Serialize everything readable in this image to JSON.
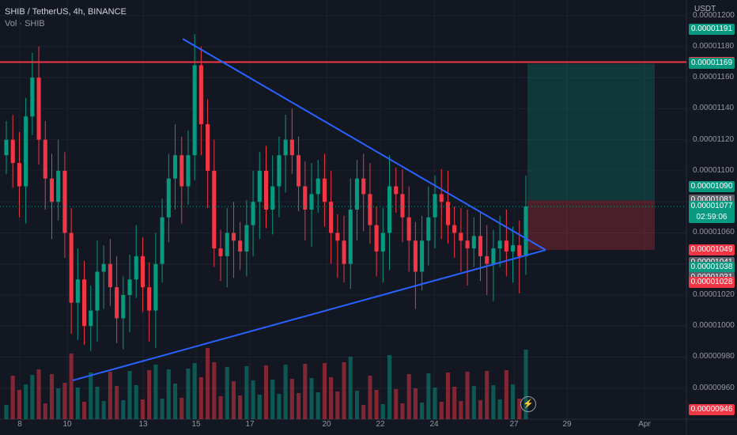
{
  "legend": {
    "title": "SHIB / TetherUS, 4h, BINANCE",
    "volume": "Vol · SHIB"
  },
  "price_axis": {
    "unit": "USDT",
    "ticks": [
      {
        "label": "0.00001200",
        "v": 1.2e-05
      },
      {
        "label": "0.00001180",
        "v": 1.18e-05
      },
      {
        "label": "0.00001160",
        "v": 1.16e-05
      },
      {
        "label": "0.00001140",
        "v": 1.14e-05
      },
      {
        "label": "0.00001120",
        "v": 1.12e-05
      },
      {
        "label": "0.00001100",
        "v": 1.1e-05
      },
      {
        "label": "0.00001080",
        "v": 1.08e-05
      },
      {
        "label": "0.00001060",
        "v": 1.06e-05
      },
      {
        "label": "0.00001040",
        "v": 1.04e-05
      },
      {
        "label": "0.00001020",
        "v": 1.02e-05
      },
      {
        "label": "0.00001000",
        "v": 1e-05
      },
      {
        "label": "0.00000980",
        "v": 9.8e-06
      },
      {
        "label": "0.00000960",
        "v": 9.6e-06
      }
    ],
    "tags": [
      {
        "label": "0.00001191",
        "v": 1.191e-05,
        "color": "#089981"
      },
      {
        "label": "0.00001170",
        "v": 1.17e-05,
        "color": "#f23645"
      },
      {
        "label": "0.00001169",
        "v": 1.169e-05,
        "color": "#089981"
      },
      {
        "label": "0.00001090",
        "v": 1.09e-05,
        "color": "#089981"
      },
      {
        "label": "0.00001081",
        "v": 1.081e-05,
        "color": "#5d606b"
      },
      {
        "label": "0.00001077",
        "v": 1.077e-05,
        "color": "#089981",
        "sub": "02:59:06"
      },
      {
        "label": "0.00001049",
        "v": 1.049e-05,
        "color": "#f23645"
      },
      {
        "label": "0.00001041",
        "v": 1.041e-05,
        "color": "#5d606b"
      },
      {
        "label": "0.00001038",
        "v": 1.038e-05,
        "color": "#089981"
      },
      {
        "label": "0.00001031",
        "v": 1.031e-05,
        "color": "#5d606b"
      },
      {
        "label": "0.00001028",
        "v": 1.028e-05,
        "color": "#f23645"
      },
      {
        "label": "0.00000946",
        "v": 9.46e-06,
        "color": "#f23645"
      }
    ]
  },
  "time_axis": [
    "8",
    "10",
    "13",
    "15",
    "17",
    "20",
    "22",
    "24",
    "27",
    "29",
    "Apr"
  ],
  "chart_data": {
    "type": "candlestick",
    "symbol": "SHIB / TetherUS",
    "interval": "4h",
    "exchange": "BINANCE",
    "y_range": [
      9.4e-06,
      1.21e-05
    ],
    "resistance_level": 1.17e-05,
    "last_price": 1.077e-05,
    "close_series": [
      1.12e-05,
      1.105e-05,
      1.09e-05,
      1.135e-05,
      1.16e-05,
      1.12e-05,
      1.095e-05,
      1.08e-05,
      1.1e-05,
      1.06e-05,
      1.015e-05,
      1.03e-05,
      1e-05,
      1.01e-05,
      1.035e-05,
      1.04e-05,
      1.025e-05,
      1.005e-05,
      1.02e-05,
      1.03e-05,
      1.045e-05,
      1.025e-05,
      1.01e-05,
      1.04e-05,
      1.07e-05,
      1.095e-05,
      1.11e-05,
      1.09e-05,
      1.11e-05,
      1.168e-05,
      1.13e-05,
      1.1e-05,
      1.05e-05,
      1.045e-05,
      1.06e-05,
      1.055e-05,
      1.048e-05,
      1.065e-05,
      1.08e-05,
      1.1e-05,
      1.075e-05,
      1.09e-05,
      1.11e-05,
      1.12e-05,
      1.11e-05,
      1.09e-05,
      1.075e-05,
      1.085e-05,
      1.095e-05,
      1.08e-05,
      1.06e-05,
      1.055e-05,
      1.04e-05,
      1.075e-05,
      1.095e-05,
      1.085e-05,
      1.065e-05,
      1.048e-05,
      1.06e-05,
      1.09e-05,
      1.085e-05,
      1.07e-05,
      1.055e-05,
      1.035e-05,
      1.055e-05,
      1.07e-05,
      1.085e-05,
      1.08e-05,
      1.065e-05,
      1.06e-05,
      1.055e-05,
      1.05e-05,
      1.058e-05,
      1.045e-05,
      1.04e-05,
      1.05e-05,
      1.055e-05,
      1.048e-05,
      1.052e-05,
      1.045e-05,
      1.077e-05
    ],
    "triangle": {
      "upper_start": 1.185e-05,
      "lower_start": 9.65e-06,
      "apex": 1.049e-05
    },
    "position": {
      "entry": 1.081e-05,
      "target": 1.169e-05,
      "stop": 1.049e-05
    }
  }
}
